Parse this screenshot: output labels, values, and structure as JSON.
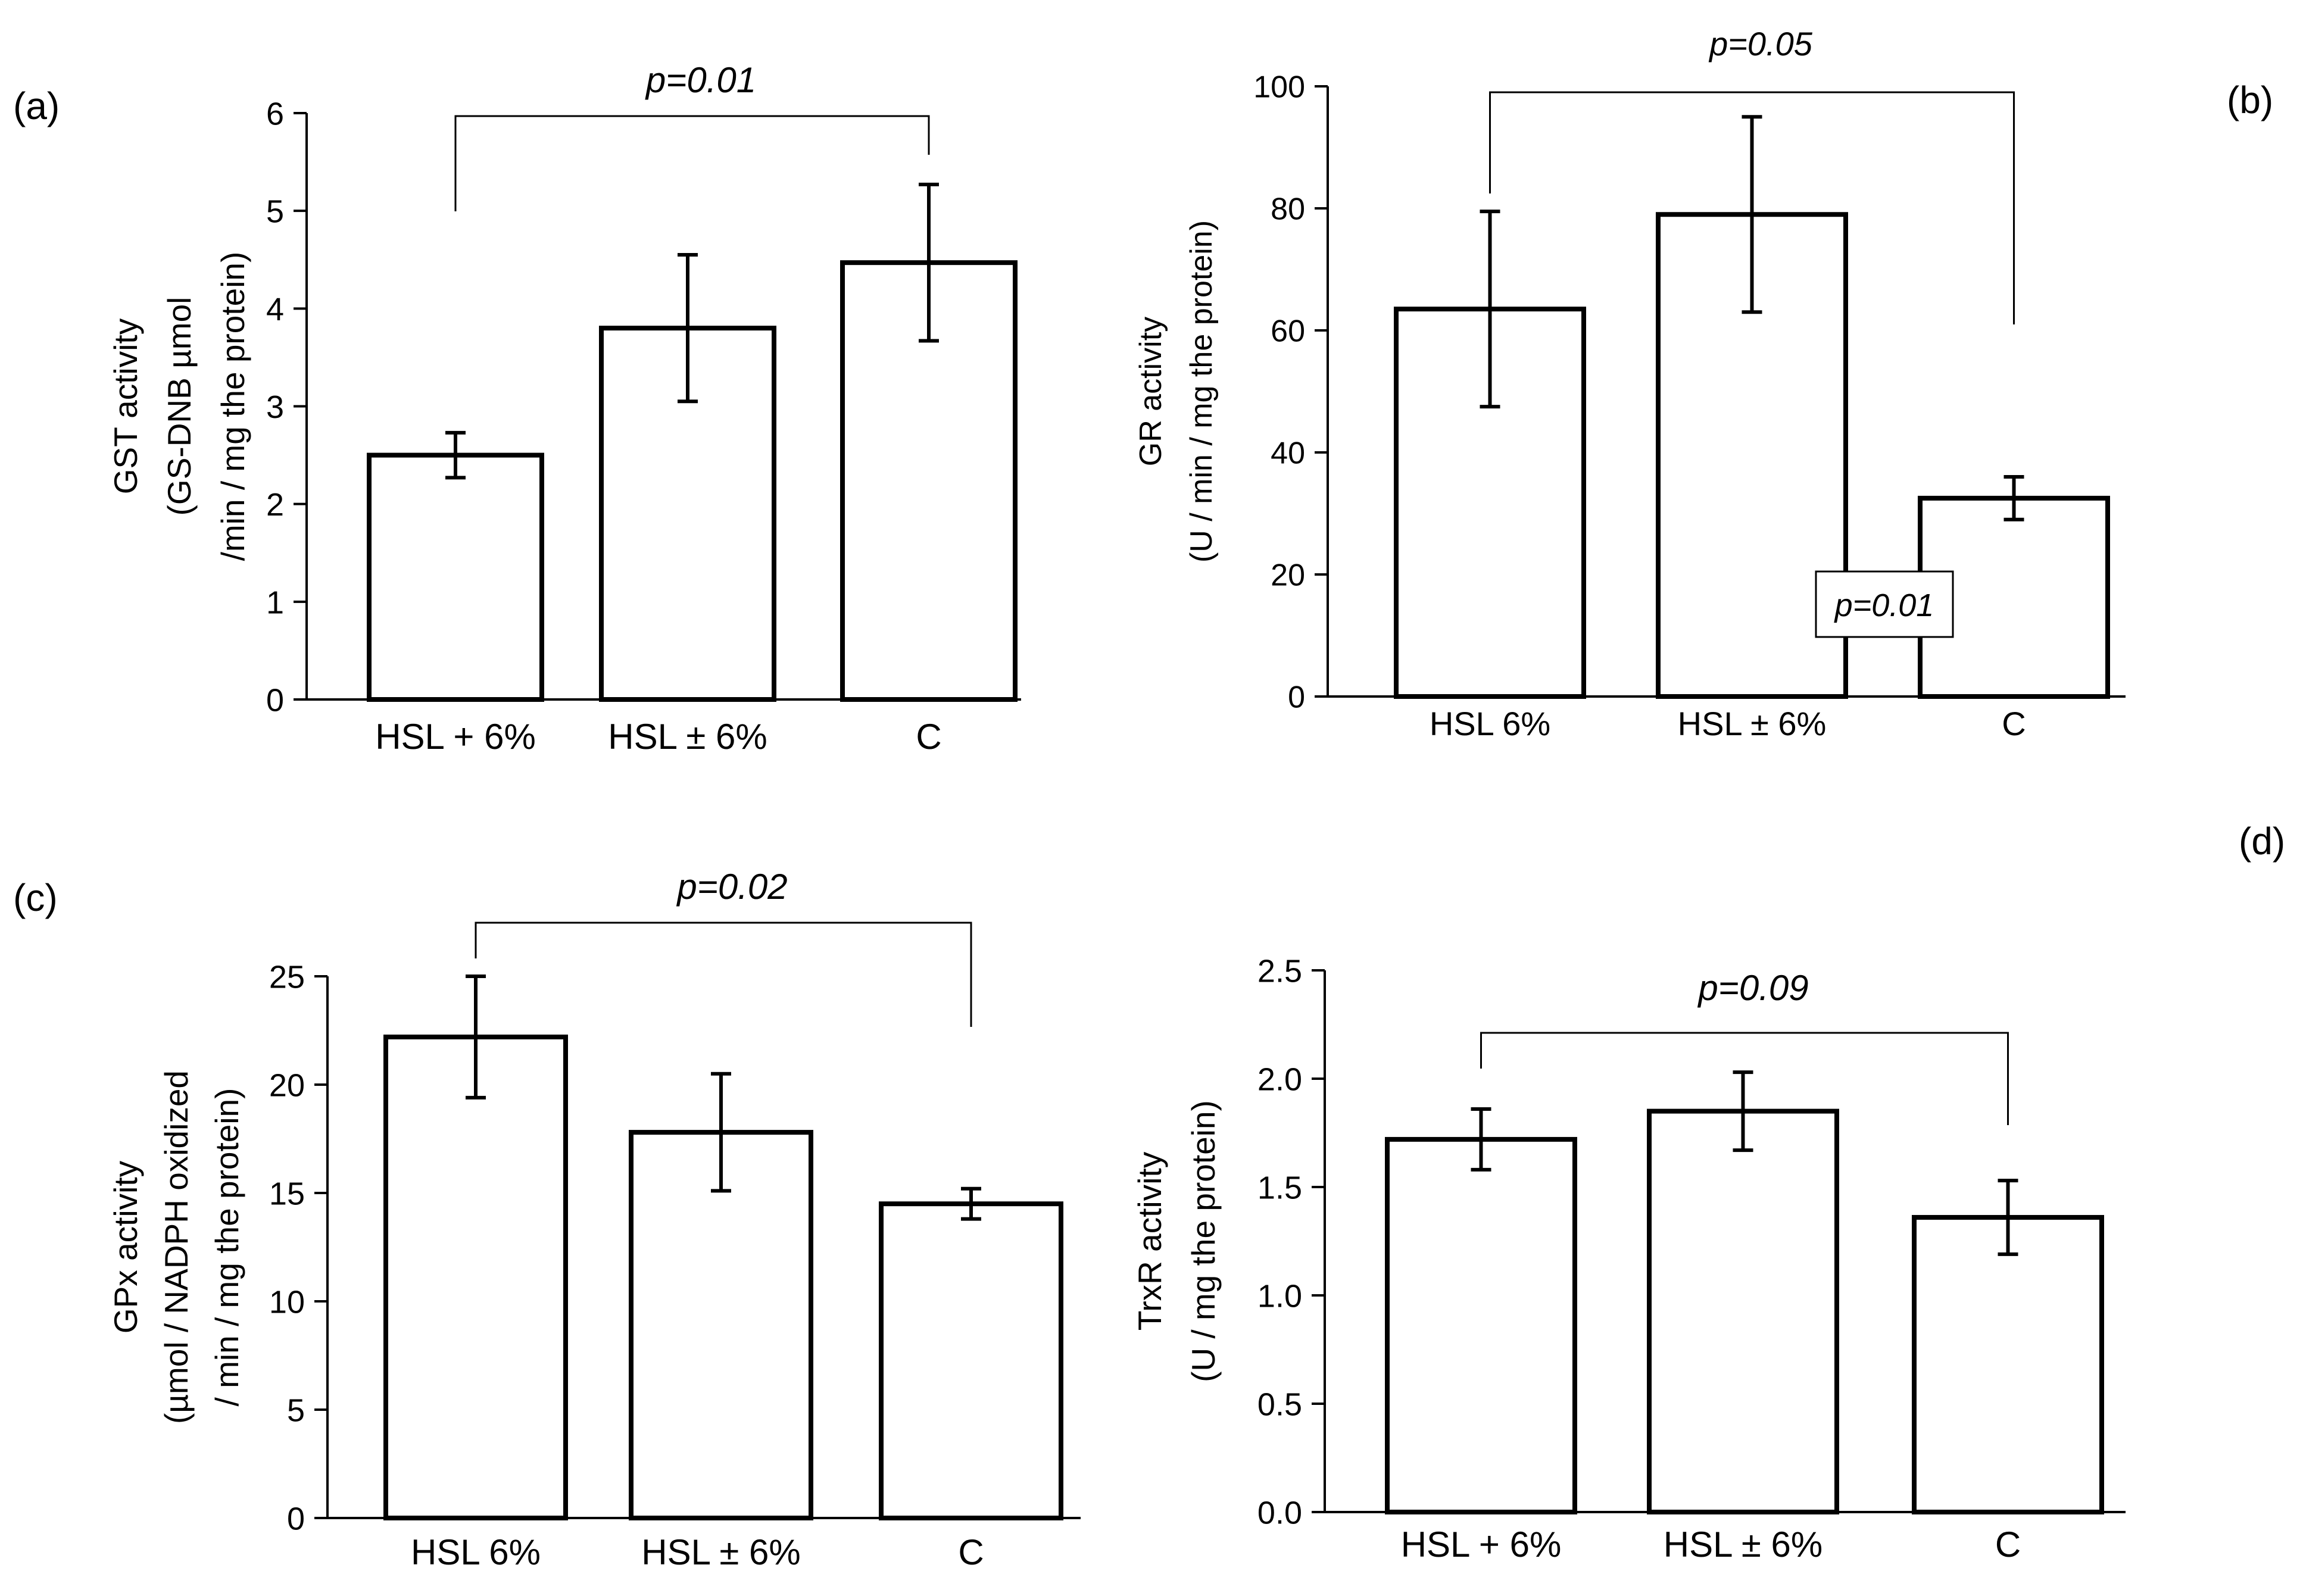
{
  "figure": {
    "description_labels": [
      "(a)",
      "(b)",
      "(c)",
      "(d)"
    ]
  },
  "chart_data": [
    {
      "panel": "(a)",
      "type": "bar",
      "ylabel_lines": [
        "GST activity",
        "(GS-DNB µmol",
        "/min / mg the protein)"
      ],
      "categories": [
        "HSL + 6%",
        "HSL ± 6%",
        "C"
      ],
      "values": [
        2.5,
        3.8,
        4.47
      ],
      "errors": [
        0.23,
        0.75,
        0.8
      ],
      "ylim": [
        0,
        6
      ],
      "yticks": [
        "0",
        "1",
        "2",
        "3",
        "4",
        "5",
        "6"
      ],
      "significance": [
        {
          "from": 0,
          "to": 2,
          "label": "p=0.01",
          "boxed": false
        }
      ]
    },
    {
      "panel": "(b)",
      "type": "bar",
      "ylabel_lines": [
        "GR activity",
        "(U / min / mg the protein)"
      ],
      "categories": [
        "HSL 6%",
        "HSL ± 6%",
        "C"
      ],
      "values": [
        63.5,
        79,
        32.5
      ],
      "errors": [
        16,
        16,
        3.5
      ],
      "ylim": [
        0,
        100
      ],
      "yticks": [
        "0",
        "20",
        "40",
        "60",
        "80",
        "100"
      ],
      "significance": [
        {
          "from": 0,
          "to": 2,
          "label": "p=0.05",
          "boxed": false
        },
        {
          "from": 2,
          "to": 2,
          "label": "p=0.01",
          "boxed": true
        }
      ]
    },
    {
      "panel": "(c)",
      "type": "bar",
      "ylabel_lines": [
        "GPx activity",
        "(µmol / NADPH oxidized",
        "/ min / mg the protein)"
      ],
      "categories": [
        "HSL 6%",
        "HSL ± 6%",
        "C"
      ],
      "values": [
        22.2,
        17.8,
        14.5
      ],
      "errors": [
        2.8,
        2.7,
        0.7
      ],
      "ylim": [
        0,
        25
      ],
      "yticks": [
        "0",
        "5",
        "10",
        "15",
        "20",
        "25"
      ],
      "significance": [
        {
          "from": 0,
          "to": 2,
          "label": "p=0.02",
          "boxed": false
        }
      ]
    },
    {
      "panel": "(d)",
      "type": "bar",
      "ylabel_lines": [
        "TrxR activity",
        "(U / mg the protein)"
      ],
      "categories": [
        "HSL + 6%",
        "HSL ± 6%",
        "C"
      ],
      "values": [
        1.72,
        1.85,
        1.36
      ],
      "errors": [
        0.14,
        0.18,
        0.17
      ],
      "ylim": [
        0,
        2.5
      ],
      "yticks": [
        "0.0",
        "0.5",
        "1.0",
        "1.5",
        "2.0",
        "2.5"
      ],
      "significance": [
        {
          "from": 0,
          "to": 2,
          "label": "p=0.09",
          "boxed": false
        }
      ]
    }
  ]
}
